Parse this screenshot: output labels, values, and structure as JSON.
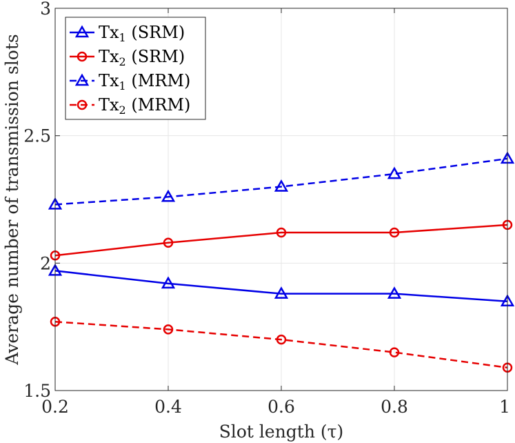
{
  "chart_data": {
    "type": "line",
    "title": "",
    "xlabel": "Slot length (τ)",
    "ylabel": "Average number of transmission slots",
    "x": [
      0.2,
      0.4,
      0.6,
      0.8,
      1.0
    ],
    "xlim": [
      0.2,
      1.0
    ],
    "ylim": [
      1.5,
      3.0
    ],
    "xticks": [
      0.2,
      0.4,
      0.6,
      0.8,
      1.0
    ],
    "xtick_labels": [
      "0.2",
      "0.4",
      "0.6",
      "0.8",
      "1"
    ],
    "yticks": [
      1.5,
      2.0,
      2.5,
      3.0
    ],
    "ytick_labels": [
      "1.5",
      "2",
      "2.5",
      "3"
    ],
    "grid": true,
    "legend_position": "top-left",
    "series": [
      {
        "name": "Tx1 (SRM)",
        "label_main": "Tx",
        "label_sub": "1",
        "label_rest": " (SRM)",
        "color": "#0000e6",
        "marker": "triangle",
        "linestyle": "solid",
        "values": [
          1.97,
          1.92,
          1.88,
          1.88,
          1.85
        ]
      },
      {
        "name": "Tx2 (SRM)",
        "label_main": "Tx",
        "label_sub": "2",
        "label_rest": " (SRM)",
        "color": "#e60000",
        "marker": "circle",
        "linestyle": "solid",
        "values": [
          2.03,
          2.08,
          2.12,
          2.12,
          2.15
        ]
      },
      {
        "name": "Tx1 (MRM)",
        "label_main": "Tx",
        "label_sub": "1",
        "label_rest": " (MRM)",
        "color": "#0000e6",
        "marker": "triangle",
        "linestyle": "dashed",
        "values": [
          2.23,
          2.26,
          2.3,
          2.35,
          2.41
        ]
      },
      {
        "name": "Tx2 (MRM)",
        "label_main": "Tx",
        "label_sub": "2",
        "label_rest": " (MRM)",
        "color": "#e60000",
        "marker": "circle",
        "linestyle": "dashed",
        "values": [
          1.77,
          1.74,
          1.7,
          1.65,
          1.59
        ]
      }
    ]
  }
}
